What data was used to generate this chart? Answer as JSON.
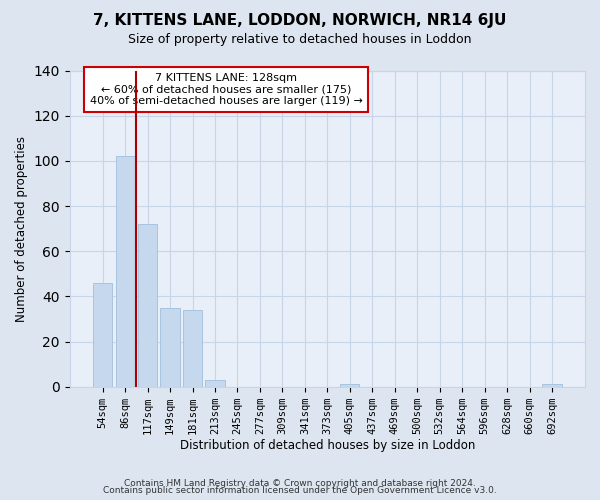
{
  "title": "7, KITTENS LANE, LODDON, NORWICH, NR14 6JU",
  "subtitle": "Size of property relative to detached houses in Loddon",
  "xlabel": "Distribution of detached houses by size in Loddon",
  "ylabel": "Number of detached properties",
  "bar_labels": [
    "54sqm",
    "86sqm",
    "117sqm",
    "149sqm",
    "181sqm",
    "213sqm",
    "245sqm",
    "277sqm",
    "309sqm",
    "341sqm",
    "373sqm",
    "405sqm",
    "437sqm",
    "469sqm",
    "500sqm",
    "532sqm",
    "564sqm",
    "596sqm",
    "628sqm",
    "660sqm",
    "692sqm"
  ],
  "bar_values": [
    46,
    102,
    72,
    35,
    34,
    3,
    0,
    0,
    0,
    0,
    0,
    1,
    0,
    0,
    0,
    0,
    0,
    0,
    0,
    0,
    1
  ],
  "bar_color": "#c5d8ed",
  "bar_edge_color": "#a8c4de",
  "grid_color": "#c8d4e8",
  "vline_color": "#aa0000",
  "annotation_text": "7 KITTENS LANE: 128sqm\n← 60% of detached houses are smaller (175)\n40% of semi-detached houses are larger (119) →",
  "annotation_box_edgecolor": "#cc0000",
  "ylim": [
    0,
    140
  ],
  "yticks": [
    0,
    20,
    40,
    60,
    80,
    100,
    120,
    140
  ],
  "footer1": "Contains HM Land Registry data © Crown copyright and database right 2024.",
  "footer2": "Contains public sector information licensed under the Open Government Licence v3.0.",
  "bg_color": "#dde6f0",
  "plot_bg_color": "#e8eff8"
}
